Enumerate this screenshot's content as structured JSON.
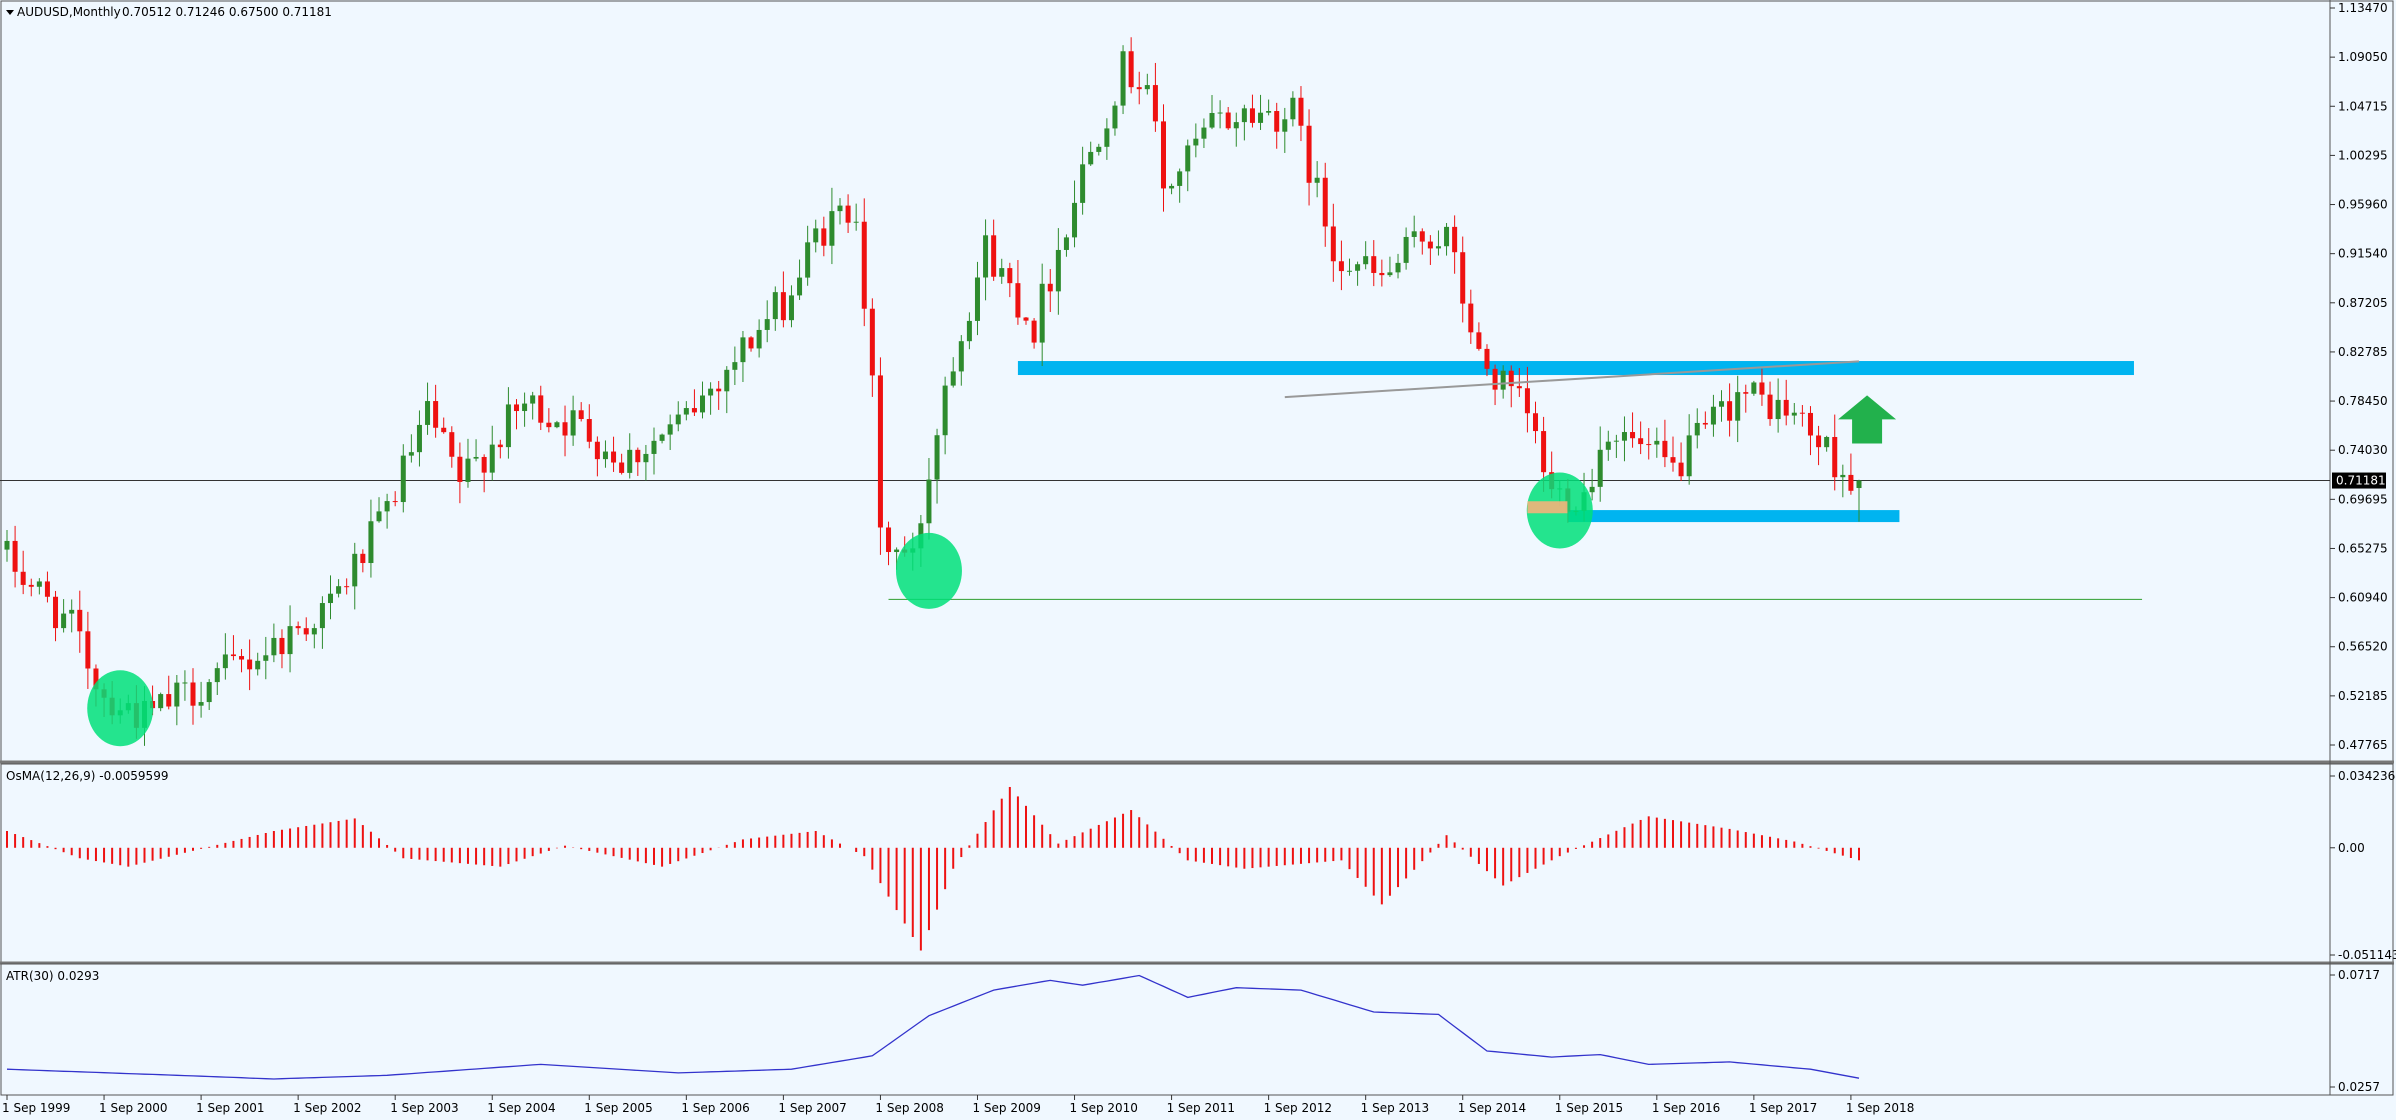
{
  "header": {
    "symbol": "AUDUSD,Monthly",
    "ohlc": "0.70512 0.71246 0.67500 0.71181"
  },
  "osma": {
    "label": "OsMA(12,26,9) -0.0059599"
  },
  "atr": {
    "label": "ATR(30) 0.0293"
  },
  "price_axis": {
    "ticks": [
      "1.13470",
      "1.09050",
      "1.04715",
      "1.00295",
      "0.95960",
      "0.91540",
      "0.87205",
      "0.82785",
      "0.78450",
      "0.74030",
      "0.69695",
      "0.65275",
      "0.60940",
      "0.56520",
      "0.52185",
      "0.47765"
    ],
    "current_label": "0.71181"
  },
  "osma_axis": {
    "ticks": [
      "0.0342369",
      "0.00",
      "-0.0511433"
    ]
  },
  "atr_axis": {
    "ticks": [
      "0.0717",
      "0.0257"
    ]
  },
  "time_axis": {
    "ticks": [
      "1 Sep 1999",
      "1 Sep 2000",
      "1 Sep 2001",
      "1 Sep 2002",
      "1 Sep 2003",
      "1 Sep 2004",
      "1 Sep 2005",
      "1 Sep 2006",
      "1 Sep 2007",
      "1 Sep 2008",
      "1 Sep 2009",
      "1 Sep 2010",
      "1 Sep 2011",
      "1 Sep 2012",
      "1 Sep 2013",
      "1 Sep 2014",
      "1 Sep 2015",
      "1 Sep 2016",
      "1 Sep 2017",
      "1 Sep 2018"
    ]
  },
  "colors": {
    "background": "#f0f8ff",
    "bull": "#2e8b2e",
    "bear": "#ee1111",
    "zone": "#00b4f0",
    "highlight": "#00e07a",
    "arrow": "#22b14c",
    "atr_line": "#3333cc",
    "osma_bars": "#ee1111"
  },
  "chart_data": {
    "type": "candlestick",
    "symbol": "AUDUSD",
    "timeframe": "Monthly",
    "x_range": [
      "1999-09",
      "2018-10"
    ],
    "y_range": [
      0.4635,
      1.1347
    ],
    "current_price": 0.71181,
    "last_bar": {
      "open": 0.70512,
      "high": 0.71246,
      "low": 0.675,
      "close": 0.71181
    },
    "anchors": [
      {
        "date": "1999-09",
        "price": 0.65
      },
      {
        "date": "2000-06",
        "price": 0.58
      },
      {
        "date": "2000-10",
        "price": 0.52
      },
      {
        "date": "2001-03",
        "price": 0.5
      },
      {
        "date": "2001-08",
        "price": 0.52
      },
      {
        "date": "2002-06",
        "price": 0.56
      },
      {
        "date": "2003-02",
        "price": 0.6
      },
      {
        "date": "2003-08",
        "price": 0.67
      },
      {
        "date": "2004-02",
        "price": 0.77
      },
      {
        "date": "2004-06",
        "price": 0.71
      },
      {
        "date": "2005-02",
        "price": 0.78
      },
      {
        "date": "2005-09",
        "price": 0.76
      },
      {
        "date": "2006-02",
        "price": 0.73
      },
      {
        "date": "2006-09",
        "price": 0.76
      },
      {
        "date": "2007-05",
        "price": 0.83
      },
      {
        "date": "2007-11",
        "price": 0.88
      },
      {
        "date": "2008-02",
        "price": 0.93
      },
      {
        "date": "2008-07",
        "price": 0.96
      },
      {
        "date": "2008-09",
        "price": 0.79
      },
      {
        "date": "2008-10",
        "price": 0.66
      },
      {
        "date": "2009-02",
        "price": 0.64
      },
      {
        "date": "2009-06",
        "price": 0.8
      },
      {
        "date": "2009-11",
        "price": 0.92
      },
      {
        "date": "2010-05",
        "price": 0.85
      },
      {
        "date": "2010-11",
        "price": 0.99
      },
      {
        "date": "2011-04",
        "price": 1.08
      },
      {
        "date": "2011-07",
        "price": 1.07
      },
      {
        "date": "2011-09",
        "price": 0.97
      },
      {
        "date": "2012-03",
        "price": 1.03
      },
      {
        "date": "2012-07",
        "price": 1.04
      },
      {
        "date": "2013-01",
        "price": 1.04
      },
      {
        "date": "2013-06",
        "price": 0.92
      },
      {
        "date": "2013-12",
        "price": 0.89
      },
      {
        "date": "2014-05",
        "price": 0.93
      },
      {
        "date": "2014-08",
        "price": 0.93
      },
      {
        "date": "2014-12",
        "price": 0.82
      },
      {
        "date": "2015-06",
        "price": 0.77
      },
      {
        "date": "2015-09",
        "price": 0.7
      },
      {
        "date": "2016-01",
        "price": 0.7
      },
      {
        "date": "2016-04",
        "price": 0.76
      },
      {
        "date": "2016-12",
        "price": 0.72
      },
      {
        "date": "2017-08",
        "price": 0.79
      },
      {
        "date": "2017-12",
        "price": 0.78
      },
      {
        "date": "2018-03",
        "price": 0.77
      },
      {
        "date": "2018-08",
        "price": 0.73
      },
      {
        "date": "2018-10",
        "price": 0.71
      }
    ],
    "annotations": {
      "resistance_zone": {
        "from": "2010-02",
        "to": "2021-08",
        "price": 0.8125
      },
      "support_zone": {
        "from": "2015-10",
        "to": "2019-03",
        "price": 0.68
      },
      "lower_line": {
        "from": "2008-10",
        "to": "2021-09",
        "price": 0.6055
      },
      "diagonal_line": [
        {
          "date": "2012-11",
          "price": 0.7865
        },
        {
          "date": "2018-10",
          "price": 0.8185
        }
      ],
      "current_price_line": 0.71181,
      "highlight_ellipses": [
        {
          "date": "2000-11",
          "price": 0.508
        },
        {
          "date": "2009-03",
          "price": 0.631
        },
        {
          "date": "2015-09",
          "price": 0.685
        }
      ],
      "up_arrow": {
        "date": "2018-11",
        "price_from": 0.745,
        "price_to": 0.788
      }
    },
    "osma": {
      "params": "12,26,9",
      "last": -0.0059599,
      "ylim": [
        -0.0511433,
        0.0342369
      ],
      "anchors": [
        {
          "date": "1999-09",
          "value": 0.008
        },
        {
          "date": "2000-06",
          "value": -0.005
        },
        {
          "date": "2000-12",
          "value": -0.009
        },
        {
          "date": "2002-06",
          "value": 0.008
        },
        {
          "date": "2003-04",
          "value": 0.014
        },
        {
          "date": "2003-10",
          "value": -0.005
        },
        {
          "date": "2004-10",
          "value": -0.009
        },
        {
          "date": "2005-06",
          "value": 0.001
        },
        {
          "date": "2006-06",
          "value": -0.009
        },
        {
          "date": "2007-04",
          "value": 0.004
        },
        {
          "date": "2008-01",
          "value": 0.008
        },
        {
          "date": "2008-07",
          "value": -0.004
        },
        {
          "date": "2009-02",
          "value": -0.049
        },
        {
          "date": "2009-06",
          "value": -0.01
        },
        {
          "date": "2010-01",
          "value": 0.029
        },
        {
          "date": "2010-07",
          "value": 0.002
        },
        {
          "date": "2011-04",
          "value": 0.018
        },
        {
          "date": "2011-11",
          "value": -0.006
        },
        {
          "date": "2012-06",
          "value": -0.01
        },
        {
          "date": "2013-06",
          "value": -0.006
        },
        {
          "date": "2013-11",
          "value": -0.027
        },
        {
          "date": "2014-07",
          "value": 0.006
        },
        {
          "date": "2015-02",
          "value": -0.018
        },
        {
          "date": "2015-09",
          "value": -0.004
        },
        {
          "date": "2016-08",
          "value": 0.015
        },
        {
          "date": "2017-06",
          "value": 0.009
        },
        {
          "date": "2018-02",
          "value": 0.003
        },
        {
          "date": "2018-10",
          "value": -0.006
        }
      ]
    },
    "atr": {
      "period": 30,
      "last": 0.0293,
      "ylim": [
        0.0257,
        0.0717
      ],
      "anchors": [
        {
          "date": "1999-09",
          "value": 0.033
        },
        {
          "date": "2001-06",
          "value": 0.0305
        },
        {
          "date": "2002-06",
          "value": 0.029
        },
        {
          "date": "2003-08",
          "value": 0.0305
        },
        {
          "date": "2005-03",
          "value": 0.035
        },
        {
          "date": "2006-08",
          "value": 0.0315
        },
        {
          "date": "2007-10",
          "value": 0.033
        },
        {
          "date": "2008-08",
          "value": 0.0385
        },
        {
          "date": "2009-03",
          "value": 0.055
        },
        {
          "date": "2009-11",
          "value": 0.0655
        },
        {
          "date": "2010-06",
          "value": 0.0695
        },
        {
          "date": "2010-10",
          "value": 0.0675
        },
        {
          "date": "2011-05",
          "value": 0.0715
        },
        {
          "date": "2011-11",
          "value": 0.0625
        },
        {
          "date": "2012-05",
          "value": 0.0665
        },
        {
          "date": "2013-01",
          "value": 0.0655
        },
        {
          "date": "2013-10",
          "value": 0.0565
        },
        {
          "date": "2014-06",
          "value": 0.0555
        },
        {
          "date": "2014-12",
          "value": 0.0405
        },
        {
          "date": "2015-08",
          "value": 0.038
        },
        {
          "date": "2016-02",
          "value": 0.039
        },
        {
          "date": "2016-08",
          "value": 0.035
        },
        {
          "date": "2017-06",
          "value": 0.036
        },
        {
          "date": "2018-04",
          "value": 0.033
        },
        {
          "date": "2018-10",
          "value": 0.0293
        }
      ]
    }
  }
}
